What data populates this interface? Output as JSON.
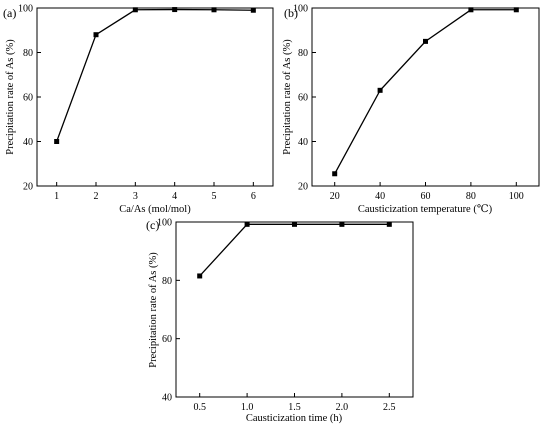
{
  "chart_data": [
    {
      "panel_label": "(a)",
      "type": "line",
      "xlabel": "Ca/As (mol/mol)",
      "ylabel": "Precipitation rate of As (%)",
      "x": [
        1,
        2,
        3,
        4,
        5,
        6
      ],
      "y": [
        40,
        88,
        99.2,
        99.3,
        99.2,
        99.0
      ],
      "xlim": [
        0.5,
        6.5
      ],
      "ylim": [
        20,
        100
      ],
      "xticks": [
        1,
        2,
        3,
        4,
        5,
        6
      ],
      "yticks": [
        20,
        40,
        60,
        80,
        100
      ],
      "grid": false,
      "marker": "square",
      "color": "#000000"
    },
    {
      "panel_label": "(b)",
      "type": "line",
      "xlabel": "Causticization temperature (℃)",
      "ylabel": "Precipitation rate of As (%)",
      "x": [
        20,
        40,
        60,
        80,
        100
      ],
      "y": [
        25.5,
        63,
        85,
        99.2,
        99.2
      ],
      "xlim": [
        10,
        110
      ],
      "ylim": [
        20,
        100
      ],
      "xticks": [
        20,
        40,
        60,
        80,
        100
      ],
      "yticks": [
        20,
        40,
        60,
        80,
        100
      ],
      "grid": false,
      "marker": "square",
      "color": "#000000"
    },
    {
      "panel_label": "(c)",
      "type": "line",
      "xlabel": "Causticization time (h)",
      "ylabel": "Precipitation rate of As (%)",
      "x": [
        0.5,
        1.0,
        1.5,
        2.0,
        2.5
      ],
      "y": [
        81.5,
        99.2,
        99.2,
        99.2,
        99.2
      ],
      "xlim": [
        0.25,
        2.75
      ],
      "ylim": [
        40,
        100
      ],
      "xticks": [
        0.5,
        1.0,
        1.5,
        2.0,
        2.5
      ],
      "yticks": [
        40,
        60,
        80,
        100
      ],
      "tick_format": "0.0",
      "grid": false,
      "marker": "square",
      "color": "#000000"
    }
  ]
}
